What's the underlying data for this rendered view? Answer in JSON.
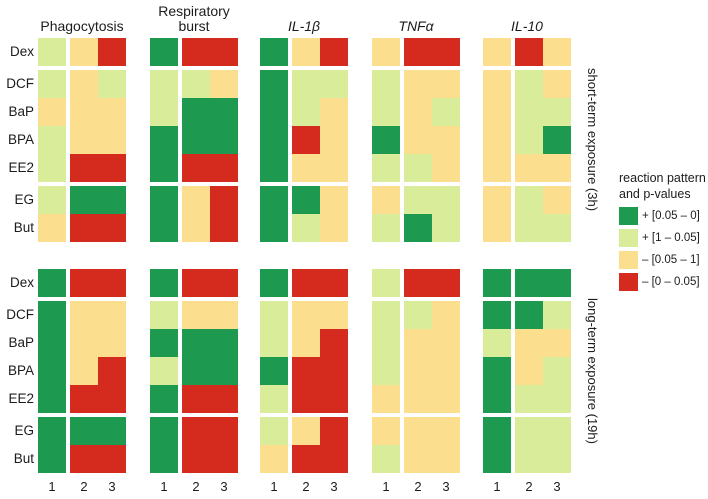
{
  "chart_data": {
    "type": "heatmap",
    "assays": [
      {
        "label": "Phagocytosis",
        "lines": [
          "Phagocytosis"
        ],
        "italic": false
      },
      {
        "label": "Respiratory burst",
        "lines": [
          "Respiratory",
          "burst"
        ],
        "italic": false
      },
      {
        "label": "IL-1β",
        "lines": [
          "IL-1β"
        ],
        "italic": true
      },
      {
        "label": "TNFα",
        "lines": [
          "TNFα"
        ],
        "italic": true
      },
      {
        "label": "IL-10",
        "lines": [
          "IL-10"
        ],
        "italic": true
      }
    ],
    "compounds": [
      "Dex",
      "DCF",
      "BaP",
      "BPA",
      "EE2",
      "EG",
      "But"
    ],
    "row_groups": [
      [
        "Dex"
      ],
      [
        "DCF",
        "BaP",
        "BPA",
        "EE2"
      ],
      [
        "EG",
        "But"
      ]
    ],
    "replicate_ticks": [
      "1",
      "2",
      "3"
    ],
    "colors": {
      "DG": "#1E9A50",
      "LG": "#D8EC9A",
      "Y": "#FBDF8F",
      "R": "#D52B1F"
    },
    "value_legend": {
      "title_line1": "reaction pattern",
      "title_line2": "and p-values",
      "entries": [
        {
          "code": "DG",
          "label": "+ [0.05 – 0]"
        },
        {
          "code": "LG",
          "label": "+ [1 – 0.05]"
        },
        {
          "code": "Y",
          "label": "– [0.05 – 1]"
        },
        {
          "code": "R",
          "label": "– [0 – 0.05]"
        }
      ]
    },
    "panels": [
      {
        "label": "short-term exposure (3h)",
        "grids": [
          [
            [
              "LG",
              "Y",
              "R"
            ],
            [
              "LG",
              "Y",
              "LG"
            ],
            [
              "Y",
              "Y",
              "Y"
            ],
            [
              "LG",
              "Y",
              "Y"
            ],
            [
              "LG",
              "R",
              "R"
            ],
            [
              "LG",
              "DG",
              "DG"
            ],
            [
              "Y",
              "R",
              "R"
            ]
          ],
          [
            [
              "DG",
              "R",
              "R"
            ],
            [
              "LG",
              "LG",
              "Y"
            ],
            [
              "LG",
              "DG",
              "DG"
            ],
            [
              "DG",
              "DG",
              "DG"
            ],
            [
              "DG",
              "R",
              "R"
            ],
            [
              "DG",
              "Y",
              "R"
            ],
            [
              "DG",
              "Y",
              "R"
            ]
          ],
          [
            [
              "DG",
              "Y",
              "R"
            ],
            [
              "DG",
              "LG",
              "LG"
            ],
            [
              "DG",
              "LG",
              "Y"
            ],
            [
              "DG",
              "R",
              "Y"
            ],
            [
              "DG",
              "Y",
              "Y"
            ],
            [
              "DG",
              "DG",
              "Y"
            ],
            [
              "DG",
              "LG",
              "Y"
            ]
          ],
          [
            [
              "Y",
              "R",
              "R"
            ],
            [
              "LG",
              "Y",
              "Y"
            ],
            [
              "LG",
              "Y",
              "LG"
            ],
            [
              "DG",
              "Y",
              "Y"
            ],
            [
              "LG",
              "LG",
              "Y"
            ],
            [
              "Y",
              "LG",
              "LG"
            ],
            [
              "LG",
              "DG",
              "LG"
            ]
          ],
          [
            [
              "Y",
              "R",
              "Y"
            ],
            [
              "Y",
              "LG",
              "Y"
            ],
            [
              "Y",
              "LG",
              "LG"
            ],
            [
              "Y",
              "LG",
              "DG"
            ],
            [
              "Y",
              "Y",
              "Y"
            ],
            [
              "Y",
              "LG",
              "Y"
            ],
            [
              "Y",
              "LG",
              "LG"
            ]
          ]
        ]
      },
      {
        "label": "long-term exposure (19h)",
        "grids": [
          [
            [
              "DG",
              "R",
              "R"
            ],
            [
              "DG",
              "Y",
              "Y"
            ],
            [
              "DG",
              "Y",
              "Y"
            ],
            [
              "DG",
              "Y",
              "R"
            ],
            [
              "DG",
              "R",
              "R"
            ],
            [
              "DG",
              "DG",
              "DG"
            ],
            [
              "DG",
              "R",
              "R"
            ]
          ],
          [
            [
              "DG",
              "R",
              "R"
            ],
            [
              "LG",
              "Y",
              "Y"
            ],
            [
              "DG",
              "DG",
              "DG"
            ],
            [
              "LG",
              "DG",
              "DG"
            ],
            [
              "DG",
              "R",
              "R"
            ],
            [
              "DG",
              "R",
              "R"
            ],
            [
              "DG",
              "R",
              "R"
            ]
          ],
          [
            [
              "DG",
              "R",
              "R"
            ],
            [
              "LG",
              "Y",
              "Y"
            ],
            [
              "LG",
              "Y",
              "R"
            ],
            [
              "DG",
              "R",
              "R"
            ],
            [
              "LG",
              "R",
              "R"
            ],
            [
              "LG",
              "Y",
              "R"
            ],
            [
              "Y",
              "R",
              "R"
            ]
          ],
          [
            [
              "LG",
              "R",
              "R"
            ],
            [
              "LG",
              "LG",
              "Y"
            ],
            [
              "LG",
              "Y",
              "Y"
            ],
            [
              "LG",
              "Y",
              "Y"
            ],
            [
              "Y",
              "Y",
              "Y"
            ],
            [
              "Y",
              "Y",
              "Y"
            ],
            [
              "LG",
              "Y",
              "Y"
            ]
          ],
          [
            [
              "DG",
              "DG",
              "DG"
            ],
            [
              "DG",
              "DG",
              "LG"
            ],
            [
              "LG",
              "Y",
              "Y"
            ],
            [
              "DG",
              "Y",
              "LG"
            ],
            [
              "DG",
              "LG",
              "LG"
            ],
            [
              "DG",
              "LG",
              "LG"
            ],
            [
              "DG",
              "LG",
              "LG"
            ]
          ]
        ]
      }
    ]
  }
}
